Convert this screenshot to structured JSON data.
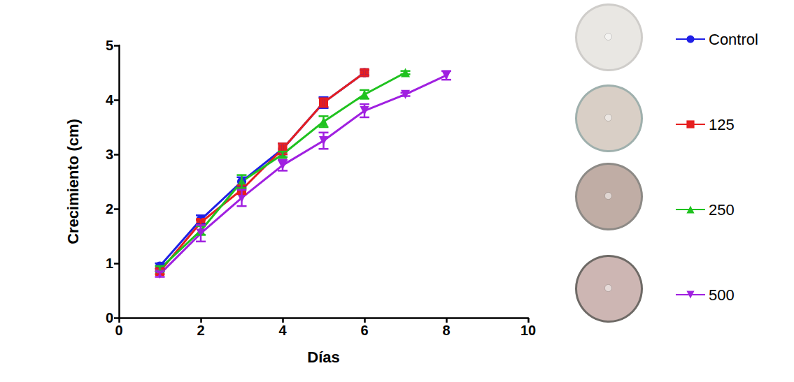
{
  "chart_data": {
    "type": "line",
    "x_label": "Días",
    "y_label": "Crecimiento (cm)",
    "x": [
      1,
      2,
      3,
      4,
      5,
      6,
      7,
      8
    ],
    "xlim": [
      0,
      10
    ],
    "xticks": [
      0,
      2,
      4,
      6,
      8,
      10
    ],
    "ylim": [
      0,
      5
    ],
    "yticks": [
      0,
      1,
      2,
      3,
      4,
      5
    ],
    "grid": false,
    "legend": "right",
    "series": [
      {
        "name": "Control",
        "color": "#1f1fe6",
        "marker": "circle",
        "values": [
          0.95,
          1.8,
          2.5,
          3.1,
          3.95,
          4.5,
          null,
          null
        ],
        "error": [
          0.05,
          0.08,
          0.08,
          0.1,
          0.1,
          0.05,
          null,
          null
        ]
      },
      {
        "name": "125",
        "color": "#e61f1f",
        "marker": "square",
        "values": [
          0.85,
          1.75,
          2.35,
          3.1,
          3.95,
          4.5,
          null,
          null
        ],
        "error": [
          0.05,
          0.05,
          0.08,
          0.1,
          0.08,
          0.05,
          null,
          null
        ]
      },
      {
        "name": "250",
        "color": "#1fc21f",
        "marker": "triangle",
        "values": [
          0.9,
          1.6,
          2.5,
          3.0,
          3.6,
          4.1,
          4.5,
          null
        ],
        "error": [
          0.05,
          0.08,
          0.12,
          0.05,
          0.1,
          0.08,
          0.03,
          null
        ]
      },
      {
        "name": "500",
        "color": "#a020e0",
        "marker": "inverted_triangle",
        "values": [
          0.8,
          1.55,
          2.2,
          2.8,
          3.25,
          3.8,
          4.1,
          4.45
        ],
        "error": [
          0.05,
          0.15,
          0.15,
          0.1,
          0.15,
          0.12,
          0.03,
          0.08
        ]
      }
    ]
  }
}
